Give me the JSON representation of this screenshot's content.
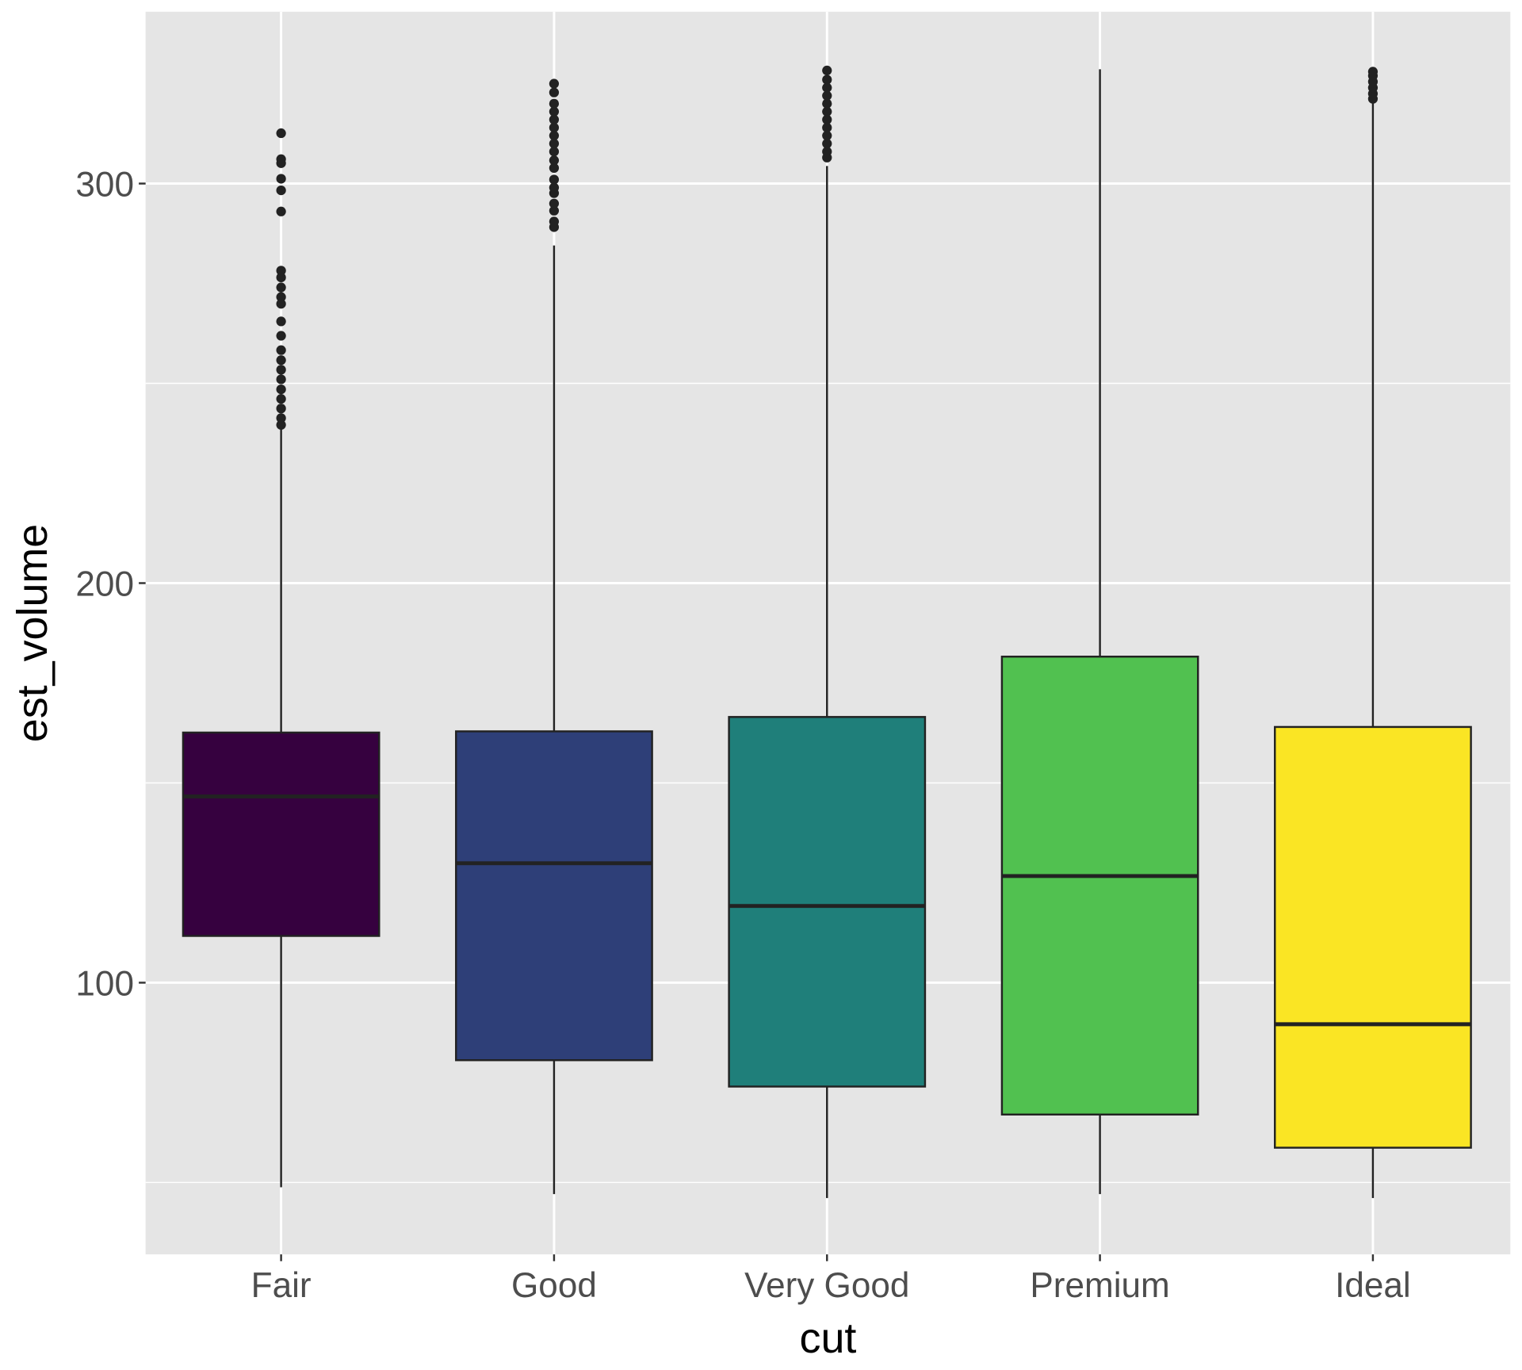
{
  "chart_data": {
    "type": "boxplot",
    "title": "",
    "xlabel": "cut",
    "ylabel": "est_volume",
    "ylim": [
      32,
      343
    ],
    "yticks": [
      100,
      200,
      300
    ],
    "ytick_labels": [
      "100",
      "200",
      "300"
    ],
    "minor_gridlines": [
      50,
      150,
      250
    ],
    "grid": true,
    "legend": "none",
    "categories": [
      "Fair",
      "Good",
      "Very Good",
      "Premium",
      "Ideal"
    ],
    "fill_colors": [
      "#36013F",
      "#2E3F78",
      "#1F7F7A",
      "#51C150",
      "#FAE524"
    ],
    "boxes": [
      {
        "category": "Fair",
        "lower_whisker": 48.8,
        "q1": 111.7,
        "median": 146.6,
        "q3": 162.6,
        "upper_whisker": 238.5,
        "outliers": [
          239.6,
          241.3,
          243.7,
          246.1,
          248.5,
          251,
          253.4,
          255.8,
          258.3,
          261.9,
          265.5,
          269.9,
          271.6,
          274,
          276.5,
          278.2,
          293.0,
          298.3,
          301.2,
          305.1,
          306.1,
          312.6
        ]
      },
      {
        "category": "Good",
        "lower_whisker": 47.1,
        "q1": 80.6,
        "median": 129.9,
        "q3": 162.9,
        "upper_whisker": 284.5,
        "outliers": [
          289.1,
          290.5,
          293.2,
          295,
          297.6,
          299,
          301,
          303.9,
          305.8,
          308,
          310,
          312,
          314,
          316,
          318,
          320,
          322.8,
          325.0
        ]
      },
      {
        "category": "Very Good",
        "lower_whisker": 46.1,
        "q1": 74.0,
        "median": 119.2,
        "q3": 166.5,
        "upper_whisker": 304.4,
        "outliers": [
          306.5,
          308,
          310,
          312,
          314,
          316,
          318,
          320,
          322,
          324,
          326,
          328.3
        ]
      },
      {
        "category": "Premium",
        "lower_whisker": 47.1,
        "q1": 67.0,
        "median": 126.7,
        "q3": 181.6,
        "upper_whisker": 328.6,
        "outliers": []
      },
      {
        "category": "Ideal",
        "lower_whisker": 46.1,
        "q1": 58.7,
        "median": 89.6,
        "q3": 164.0,
        "upper_whisker": 321.0,
        "outliers": [
          321.2,
          322.5,
          324,
          325.5,
          327,
          328
        ]
      }
    ]
  }
}
